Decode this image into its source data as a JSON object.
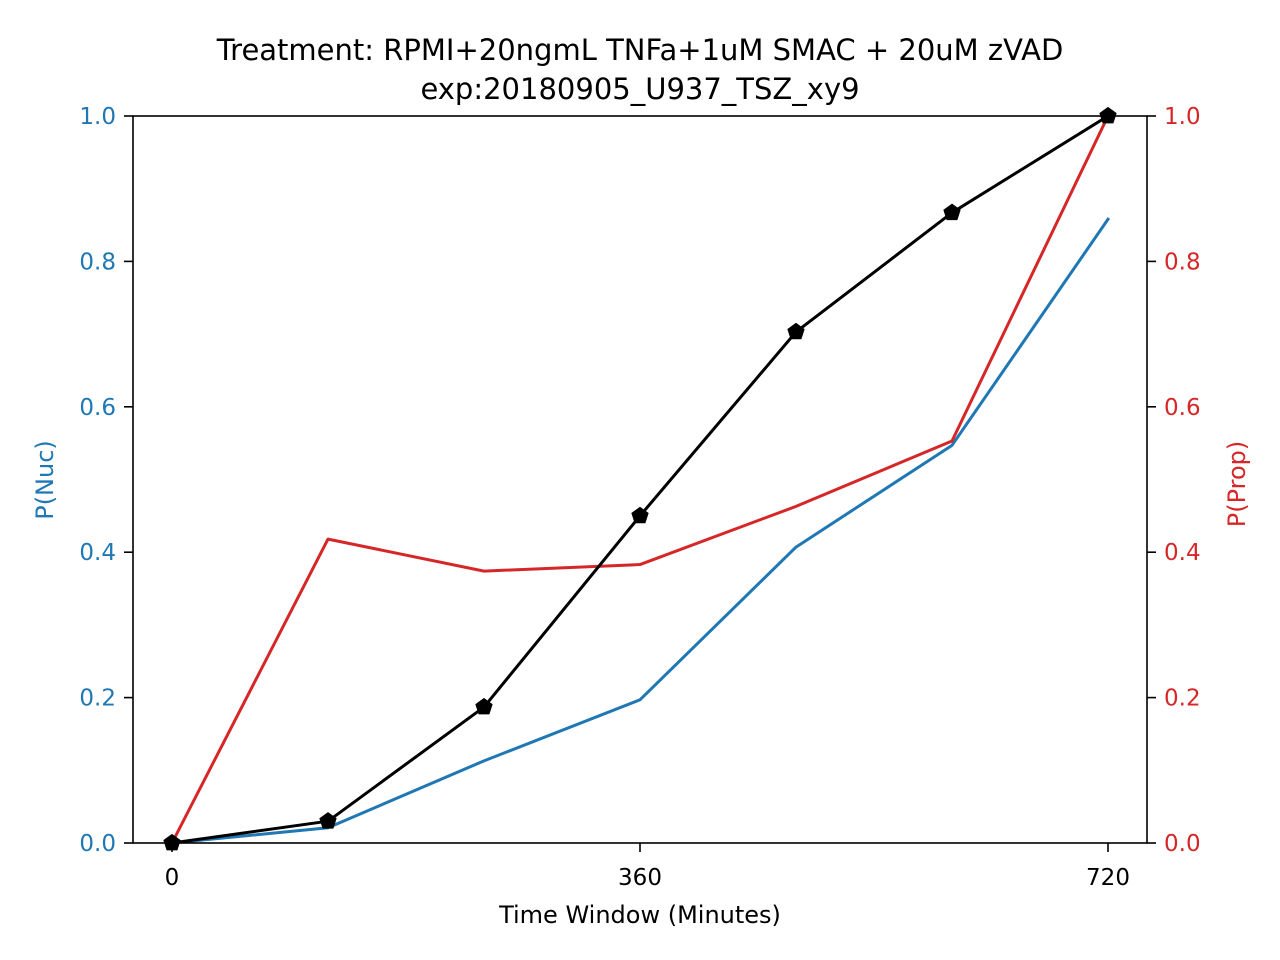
{
  "chart_data": {
    "type": "line",
    "title": "Treatment: RPMI+20ngmL TNFa+1uM SMAC + 20uM zVAD",
    "subtitle": "exp:20180905_U937_TSZ_xy9",
    "xlabel": "Time Window (Minutes)",
    "ylabel_left": "P(Nuc)",
    "ylabel_right": "P(Prop)",
    "xlim": [
      -30,
      750
    ],
    "ylim_left": [
      0,
      1
    ],
    "ylim_right": [
      0,
      1
    ],
    "x_ticks": [
      0,
      360,
      720
    ],
    "y_ticks": [
      0.0,
      0.2,
      0.4,
      0.6,
      0.8,
      1.0
    ],
    "x": [
      0,
      120,
      240,
      360,
      480,
      600,
      720
    ],
    "series": [
      {
        "axis": "left",
        "color": "#1f77b4",
        "marker": "none",
        "values": [
          0.0,
          0.021,
          0.113,
          0.197,
          0.407,
          0.547,
          0.858
        ]
      },
      {
        "axis": "right",
        "color": "#d62728",
        "marker": "none",
        "values": [
          0.0,
          0.418,
          0.374,
          0.383,
          0.463,
          0.553,
          1.0
        ]
      },
      {
        "axis": "left",
        "color": "#000000",
        "marker": "pentagon",
        "values": [
          0.0,
          0.03,
          0.187,
          0.45,
          0.703,
          0.867,
          1.0
        ]
      }
    ],
    "left_axis_color": "#1f77b4",
    "right_axis_color": "#d62728",
    "grid": false,
    "legend": "none"
  }
}
